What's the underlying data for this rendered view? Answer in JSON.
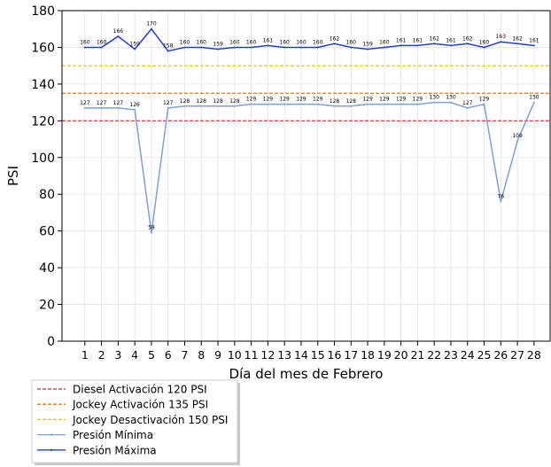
{
  "chart_data": {
    "type": "line",
    "xlabel": "Día del mes de  Febrero",
    "ylabel": "PSI",
    "ylim": [
      0,
      180
    ],
    "yticks": [
      0,
      20,
      40,
      60,
      80,
      100,
      120,
      140,
      160,
      180
    ],
    "x": [
      1,
      2,
      3,
      4,
      5,
      6,
      7,
      8,
      9,
      10,
      11,
      12,
      13,
      14,
      15,
      16,
      17,
      18,
      19,
      20,
      21,
      22,
      23,
      24,
      25,
      26,
      27,
      28
    ],
    "grid": true,
    "legend_position": "below-left",
    "reference_lines": [
      {
        "name": "Diesel Activación 120 PSI",
        "value": 120,
        "color": "#d62728"
      },
      {
        "name": "Jockey Activación 135 PSI",
        "value": 135,
        "color": "#d97c1e"
      },
      {
        "name": "Jockey Desactivación 150 PSI",
        "value": 150,
        "color": "#dbc41e"
      }
    ],
    "series": [
      {
        "name": "Presión Mínima",
        "color": "#7e9fd8",
        "values": [
          127,
          127,
          127,
          126,
          59,
          127,
          128,
          128,
          128,
          128,
          129,
          129,
          129,
          129,
          129,
          128,
          128,
          129,
          129,
          129,
          129,
          130,
          130,
          127,
          129,
          76,
          109,
          130
        ]
      },
      {
        "name": "Presión Máxima",
        "color": "#1f3fd0",
        "values": [
          160,
          160,
          166,
          159,
          170,
          158,
          160,
          160,
          159,
          160,
          160,
          161,
          160,
          160,
          160,
          162,
          160,
          159,
          160,
          161,
          161,
          162,
          161,
          162,
          160,
          163,
          162,
          161
        ]
      }
    ]
  }
}
